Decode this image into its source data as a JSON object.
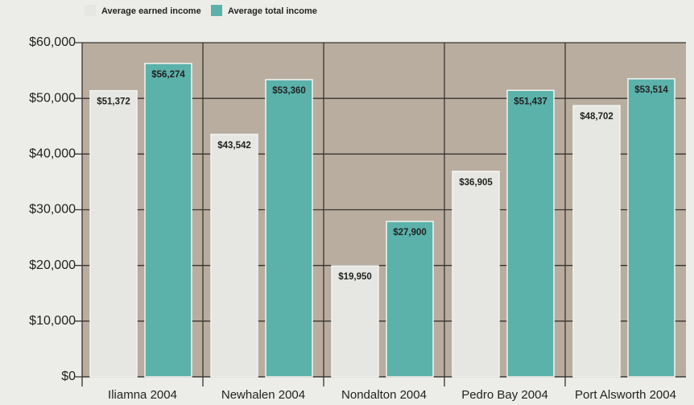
{
  "chart_data": {
    "type": "bar",
    "categories": [
      "Iliamna 2004",
      "Newhalen 2004",
      "Nondalton 2004",
      "Pedro Bay 2004",
      "Port Alsworth 2004"
    ],
    "series": [
      {
        "name": "Average earned income",
        "color": "#e6e7e2",
        "values": [
          51372,
          43542,
          19950,
          36905,
          48702
        ],
        "value_labels": [
          "$51,372",
          "$43,542",
          "$19,950",
          "$36,905",
          "$48,702"
        ]
      },
      {
        "name": "Average total income",
        "color": "#5bb2aa",
        "values": [
          56274,
          53360,
          27900,
          51437,
          53514
        ],
        "value_labels": [
          "$56,274",
          "$53,360",
          "$27,900",
          "$51,437",
          "$53,514"
        ]
      }
    ],
    "ylim": [
      0,
      60000
    ],
    "yticks": [
      {
        "value": 0,
        "label": "$0"
      },
      {
        "value": 10000,
        "label": "$10,000"
      },
      {
        "value": 20000,
        "label": "$20,000"
      },
      {
        "value": 30000,
        "label": "$30,000"
      },
      {
        "value": 40000,
        "label": "$40,000"
      },
      {
        "value": 50000,
        "label": "$50,000"
      },
      {
        "value": 60000,
        "label": "$60,000"
      }
    ],
    "grid": true
  }
}
